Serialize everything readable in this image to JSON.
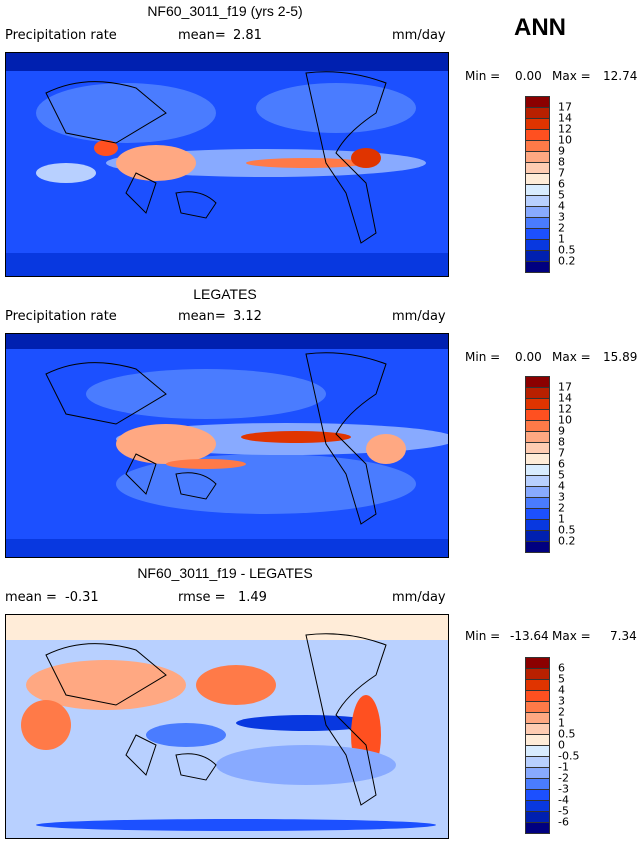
{
  "header": {
    "season": "ANN"
  },
  "panels": [
    {
      "title": "NF60_3011_f19 (yrs 2-5)",
      "left_label": "Precipitation rate",
      "stat_label": "mean=",
      "stat_value": "2.81",
      "units": "mm/day",
      "min_label": "Min =",
      "min_value": "0.00",
      "max_label": "Max =",
      "max_value": "12.74",
      "levels": [
        "17",
        "14",
        "12",
        "10",
        "9",
        "8",
        "7",
        "6",
        "5",
        "4",
        "3",
        "2",
        "1",
        "0.5",
        "0.2"
      ]
    },
    {
      "title": "LEGATES",
      "left_label": "Precipitation rate",
      "stat_label": "mean=",
      "stat_value": "3.12",
      "units": "mm/day",
      "min_label": "Min =",
      "min_value": "0.00",
      "max_label": "Max =",
      "max_value": "15.89",
      "levels": [
        "17",
        "14",
        "12",
        "10",
        "9",
        "8",
        "7",
        "6",
        "5",
        "4",
        "3",
        "2",
        "1",
        "0.5",
        "0.2"
      ]
    },
    {
      "title": "NF60_3011_f19 - LEGATES",
      "left_label": "mean =",
      "left_value": "-0.31",
      "stat_label": "rmse =",
      "stat_value": "1.49",
      "units": "mm/day",
      "min_label": "Min =",
      "min_value": "-13.64",
      "max_label": "Max =",
      "max_value": "7.34",
      "levels": [
        "6",
        "5",
        "4",
        "3",
        "2",
        "1",
        "0.5",
        "0",
        "-0.5",
        "-1",
        "-2",
        "-3",
        "-4",
        "-5",
        "-6"
      ]
    }
  ],
  "colors": [
    "#8b0000",
    "#b82000",
    "#e03400",
    "#ff5020",
    "#ff7a48",
    "#ffa882",
    "#ffccb2",
    "#ffecd8",
    "#d8ecff",
    "#b8d0ff",
    "#88aaff",
    "#4a7cff",
    "#1c50ff",
    "#0838e0",
    "#0020b0",
    "#000080"
  ]
}
